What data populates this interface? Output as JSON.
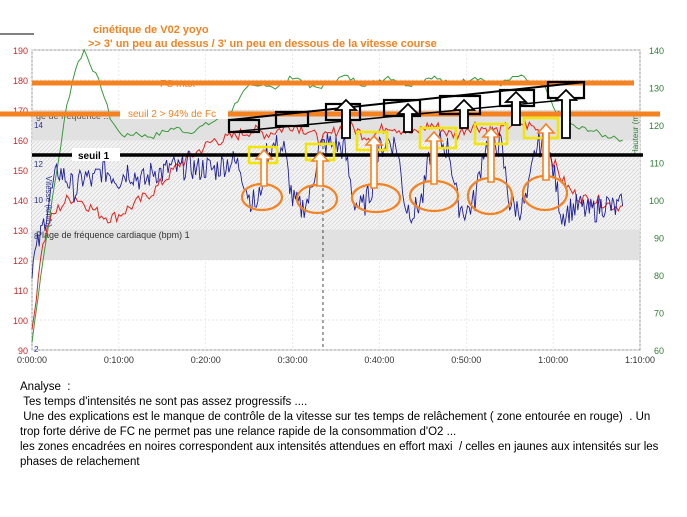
{
  "annotations": {
    "title_line1": "cinétique de V02   yoyo",
    "title_line2": ">>  3' un peu au dessus / 3' un peu en dessous  de la vitesse course",
    "fc_max_label": "FC max",
    "seuil2_label": "seuil 2 > 94% de Fc",
    "seuil1_label": "seuil 1",
    "zone_top_label": "ge de fréquence ...",
    "zone_bottom_label": "Plage de fréquence cardiaque (bpm) 1"
  },
  "analysis": {
    "heading": "Analyse  :",
    "lines": [
      " Tes temps d'intensités ne sont pas assez progressifs ....",
      " Une des explications est le manque de contrôle de la vitesse sur tes temps de relâchement ( zone entourée en rouge)  . Un trop forte dérive de FC ne permet pas une relance rapide de la consommation d'O2 ...",
      "les zones encadrées en noires correspondent aux intensités attendues en effort maxi  / celles en jaunes aux intensités sur les phases de relachement"
    ]
  },
  "colors": {
    "heart_rate": "#e8211b",
    "speed": "#1f1f9e",
    "altitude": "#3a9a3a",
    "annotation_orange": "#f58220",
    "annotation_yellow": "#f2e600",
    "threshold_black": "#000000"
  },
  "chart_data": {
    "type": "line",
    "x_axis": {
      "ticks": [
        "0:00:00",
        "0:10:00",
        "0:20:00",
        "0:30:00",
        "0:40:00",
        "0:50:00",
        "1:00:00",
        "1:10:00"
      ],
      "range_minutes": [
        0,
        70
      ]
    },
    "y_left": {
      "label": "",
      "ticks": [
        "90",
        "100",
        "110",
        "120",
        "130",
        "140",
        "150",
        "160",
        "170",
        "180",
        "190"
      ],
      "range": [
        90,
        190
      ]
    },
    "y_right": {
      "label": "Hauteur (m)",
      "ticks": [
        "60",
        "70",
        "80",
        "90",
        "100",
        "110",
        "120",
        "130",
        "140"
      ],
      "range": [
        60,
        140
      ]
    },
    "y_inner_labels": {
      "speed_label": "Vitesse (km/h)",
      "speed_ticks": [
        "2",
        "8",
        "10",
        "12",
        "14"
      ]
    },
    "reference_lines": [
      {
        "name": "FC max",
        "y": 179
      },
      {
        "name": "seuil 2 > 94% de Fc",
        "y": 169
      },
      {
        "name": "seuil 1",
        "y": 155
      }
    ],
    "zones": [
      {
        "name": "ge de fréquence ...",
        "y_range": [
          160,
          170
        ]
      },
      {
        "name": "Plage de fréquence cardiaque (bpm) 1",
        "y_range": [
          120,
          130
        ]
      }
    ],
    "cursor_minute": 33.5,
    "series": [
      {
        "name": "heart_rate",
        "points": [
          [
            0,
            95
          ],
          [
            1,
            122
          ],
          [
            2,
            133
          ],
          [
            3,
            137
          ],
          [
            4,
            140
          ],
          [
            5,
            141
          ],
          [
            6,
            139
          ],
          [
            7,
            137
          ],
          [
            8,
            135
          ],
          [
            9,
            134
          ],
          [
            10,
            135
          ],
          [
            11,
            137
          ],
          [
            12,
            139
          ],
          [
            13,
            141
          ],
          [
            14,
            143
          ],
          [
            15,
            146
          ],
          [
            16,
            149
          ],
          [
            17,
            152
          ],
          [
            18,
            154
          ],
          [
            19,
            156
          ],
          [
            20,
            158
          ],
          [
            21,
            160
          ],
          [
            22,
            160
          ],
          [
            23,
            161
          ],
          [
            24,
            162
          ],
          [
            25,
            163
          ],
          [
            26,
            163
          ],
          [
            27,
            162
          ],
          [
            28,
            163
          ],
          [
            29,
            164
          ],
          [
            30,
            165
          ],
          [
            31,
            164
          ],
          [
            32,
            163
          ],
          [
            33,
            160
          ],
          [
            34,
            161
          ],
          [
            35,
            163
          ],
          [
            36,
            165
          ],
          [
            37,
            164
          ],
          [
            38,
            162
          ],
          [
            39,
            161
          ],
          [
            40,
            163
          ],
          [
            41,
            165
          ],
          [
            42,
            164
          ],
          [
            43,
            163
          ],
          [
            44,
            162
          ],
          [
            45,
            164
          ],
          [
            46,
            165
          ],
          [
            47,
            164
          ],
          [
            48,
            162
          ],
          [
            49,
            162
          ],
          [
            50,
            164
          ],
          [
            51,
            165
          ],
          [
            52,
            164
          ],
          [
            53,
            163
          ],
          [
            54,
            163
          ],
          [
            55,
            165
          ],
          [
            56,
            166
          ],
          [
            57,
            165
          ],
          [
            58,
            164
          ],
          [
            59,
            160
          ],
          [
            60,
            153
          ],
          [
            61,
            147
          ],
          [
            62,
            143
          ],
          [
            63,
            141
          ],
          [
            64,
            140
          ],
          [
            65,
            140
          ],
          [
            66,
            139
          ],
          [
            67,
            138
          ],
          [
            68,
            138
          ]
        ]
      },
      {
        "name": "speed",
        "points": [
          [
            0,
            118
          ],
          [
            1,
            128
          ],
          [
            2,
            140
          ],
          [
            3,
            150
          ],
          [
            4,
            147
          ],
          [
            5,
            143
          ],
          [
            6,
            148
          ],
          [
            7,
            146
          ],
          [
            8,
            150
          ],
          [
            9,
            149
          ],
          [
            10,
            147
          ],
          [
            11,
            150
          ],
          [
            12,
            148
          ],
          [
            13,
            146
          ],
          [
            14,
            150
          ],
          [
            15,
            149
          ],
          [
            16,
            151
          ],
          [
            17,
            150
          ],
          [
            18,
            152
          ],
          [
            19,
            150
          ],
          [
            20,
            151
          ],
          [
            21,
            150
          ],
          [
            22,
            152
          ],
          [
            23,
            153
          ],
          [
            24,
            151
          ],
          [
            25,
            141
          ],
          [
            26,
            138
          ],
          [
            27,
            156
          ],
          [
            28,
            158
          ],
          [
            29,
            157
          ],
          [
            30,
            140
          ],
          [
            31,
            137
          ],
          [
            32,
            141
          ],
          [
            33,
            157
          ],
          [
            34,
            159
          ],
          [
            35,
            158
          ],
          [
            36,
            157
          ],
          [
            37,
            140
          ],
          [
            38,
            137
          ],
          [
            39,
            143
          ],
          [
            40,
            157
          ],
          [
            41,
            160
          ],
          [
            42,
            158
          ],
          [
            43,
            138
          ],
          [
            44,
            136
          ],
          [
            45,
            141
          ],
          [
            46,
            158
          ],
          [
            47,
            159
          ],
          [
            48,
            157
          ],
          [
            49,
            139
          ],
          [
            50,
            136
          ],
          [
            51,
            140
          ],
          [
            52,
            157
          ],
          [
            53,
            160
          ],
          [
            54,
            158
          ],
          [
            55,
            139
          ],
          [
            56,
            137
          ],
          [
            57,
            140
          ],
          [
            58,
            157
          ],
          [
            59,
            160
          ],
          [
            60,
            150
          ],
          [
            61,
            135
          ],
          [
            62,
            137
          ],
          [
            63,
            138
          ],
          [
            64,
            136
          ],
          [
            65,
            137
          ],
          [
            66,
            139
          ],
          [
            67,
            137
          ],
          [
            68,
            138
          ]
        ]
      },
      {
        "name": "altitude",
        "points": [
          [
            0,
            62
          ],
          [
            1,
            80
          ],
          [
            2,
            95
          ],
          [
            3,
            110
          ],
          [
            4,
            125
          ],
          [
            5,
            135
          ],
          [
            6,
            140
          ],
          [
            7,
            135
          ],
          [
            8,
            130
          ],
          [
            9,
            122
          ],
          [
            10,
            118
          ],
          [
            11,
            117
          ],
          [
            12,
            118
          ],
          [
            13,
            117
          ],
          [
            14,
            117
          ],
          [
            15,
            118
          ],
          [
            16,
            119
          ],
          [
            17,
            119
          ],
          [
            18,
            118
          ],
          [
            19,
            119
          ],
          [
            20,
            120
          ],
          [
            21,
            121
          ],
          [
            22,
            123
          ],
          [
            23,
            124
          ],
          [
            24,
            128
          ],
          [
            25,
            130
          ],
          [
            26,
            130
          ],
          [
            27,
            131
          ],
          [
            28,
            130
          ],
          [
            29,
            131
          ],
          [
            30,
            133
          ],
          [
            31,
            132
          ],
          [
            32,
            130
          ],
          [
            33,
            130
          ],
          [
            34,
            131
          ],
          [
            35,
            132
          ],
          [
            36,
            133
          ],
          [
            37,
            132
          ],
          [
            38,
            131
          ],
          [
            39,
            131
          ],
          [
            40,
            132
          ],
          [
            41,
            133
          ],
          [
            42,
            132
          ],
          [
            43,
            131
          ],
          [
            44,
            131
          ],
          [
            45,
            132
          ],
          [
            46,
            133
          ],
          [
            47,
            132
          ],
          [
            48,
            131
          ],
          [
            49,
            131
          ],
          [
            50,
            132
          ],
          [
            51,
            133
          ],
          [
            52,
            132
          ],
          [
            53,
            131
          ],
          [
            54,
            131
          ],
          [
            55,
            132
          ],
          [
            56,
            133
          ],
          [
            57,
            132
          ],
          [
            58,
            131
          ],
          [
            59,
            130
          ],
          [
            60,
            125
          ],
          [
            61,
            122
          ],
          [
            62,
            120
          ],
          [
            63,
            119
          ],
          [
            64,
            119
          ],
          [
            65,
            118
          ],
          [
            66,
            117
          ],
          [
            67,
            117
          ],
          [
            68,
            116
          ]
        ]
      }
    ]
  }
}
